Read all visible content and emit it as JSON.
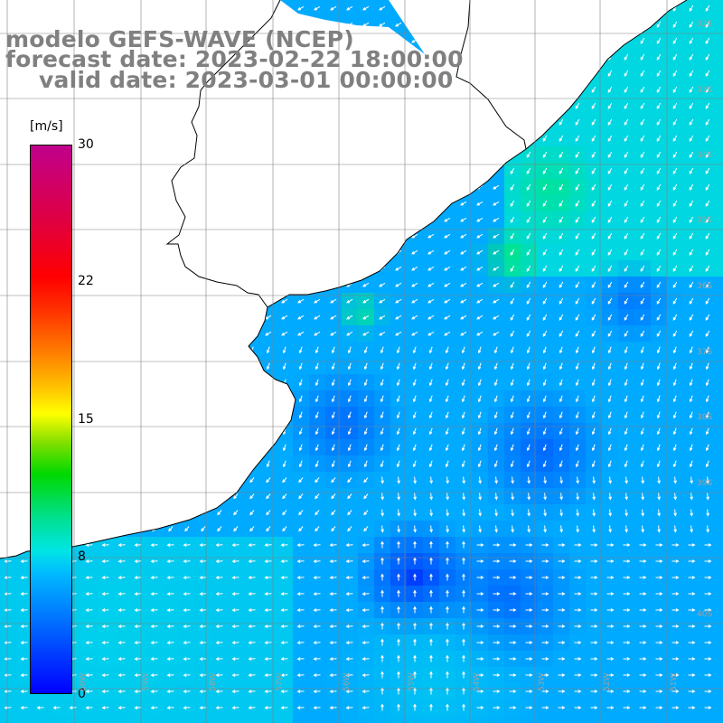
{
  "title": {
    "line1": "modelo GEFS-WAVE (NCEP)",
    "line2": "forecast date: 2023-02-22 18:00:00",
    "line3": "valid date: 2023-03-01 00:00:00"
  },
  "colorbar": {
    "unit": "[m/s]",
    "ticks": [
      "30",
      "22",
      "15",
      "8",
      "0"
    ],
    "min": 0,
    "max": 30,
    "colors": [
      "#0000ff",
      "#0088ff",
      "#00e5e5",
      "#00d800",
      "#ffff00",
      "#ff8000",
      "#ff0000",
      "#c0008c"
    ]
  },
  "map": {
    "lat_labels": [
      "32S",
      "33S",
      "34S",
      "35S",
      "36S",
      "37S",
      "38S",
      "39S",
      "40S"
    ],
    "lon_labels": [
      "60W",
      "59W",
      "58W",
      "57W",
      "56W",
      "55W",
      "54W",
      "53W",
      "52W",
      "51W"
    ],
    "colors": {
      "land": "#ffffff",
      "coastline": "#000000",
      "grid": "#808080",
      "arrows": "#ffffff"
    }
  }
}
